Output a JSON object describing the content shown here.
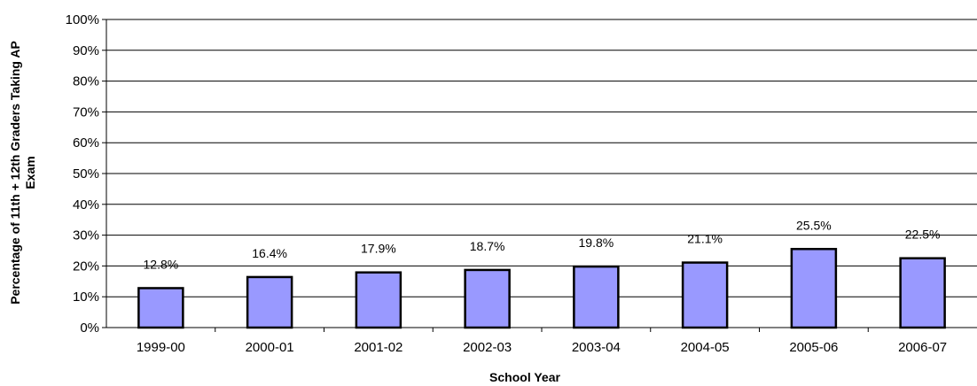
{
  "chart_data": {
    "type": "bar",
    "categories": [
      "1999-00",
      "2000-01",
      "2001-02",
      "2002-03",
      "2003-04",
      "2004-05",
      "2005-06",
      "2006-07"
    ],
    "values": [
      12.8,
      16.4,
      17.9,
      18.7,
      19.8,
      21.1,
      25.5,
      22.5
    ],
    "data_labels": [
      "12.8%",
      "16.4%",
      "17.9%",
      "18.7%",
      "19.8%",
      "21.1%",
      "25.5%",
      "22.5%"
    ],
    "xlabel": "School Year",
    "ylabel_lines": [
      "Percentage of 11th + 12th Graders Taking AP",
      "Exam"
    ],
    "ylim": [
      0,
      100
    ],
    "yticks": [
      0,
      10,
      20,
      30,
      40,
      50,
      60,
      70,
      80,
      90,
      100
    ],
    "ytick_labels": [
      "0%",
      "10%",
      "20%",
      "30%",
      "40%",
      "50%",
      "60%",
      "70%",
      "80%",
      "90%",
      "100%"
    ],
    "grid": true,
    "legend": "none",
    "bar_color": "#9999ff",
    "bar_edge_color": "#000000"
  }
}
